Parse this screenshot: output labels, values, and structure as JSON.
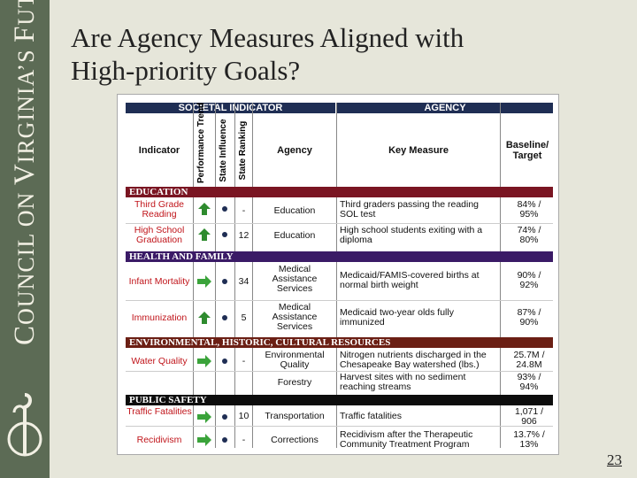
{
  "title_line1": "Are Agency Measures Aligned with",
  "title_line2": "High-priority Goals?",
  "brand": {
    "c1": "C",
    "w1": "OUNCIL ON ",
    "c2": "V",
    "w2": "IRGINIA’S ",
    "c3": "F",
    "w3": "UTURE"
  },
  "page_number": "23",
  "headers": {
    "societal": "SOCIETAL INDICATOR",
    "agency_group": "AGENCY",
    "indicator": "Indicator",
    "performance_trend": "Performance Trend",
    "state_influence": "State Influence",
    "state_ranking": "State Ranking",
    "agency": "Agency",
    "key_measure": "Key Measure",
    "baseline_target": "Baseline/ Target"
  },
  "sections": {
    "education": "EDUCATION",
    "health": "HEALTH AND FAMILY",
    "environment": "ENVIRONMENTAL, HISTORIC, CULTURAL RESOURCES",
    "safety": "PUBLIC SAFETY"
  },
  "colors": {
    "education": "#7a1522",
    "health": "#3a1a66",
    "environment": "#6b1f14",
    "safety": "#0d0d0d",
    "header": "#1f2e54",
    "up": "#2e8b2e",
    "right": "#3aa33a"
  },
  "rows": {
    "r1": {
      "indicator": "Third Grade Reading",
      "trend": "up",
      "ranking": "-",
      "agency": "Education",
      "measure": "Third graders passing the reading SOL test",
      "target": "84% / 95%"
    },
    "r2": {
      "indicator": "High School Graduation",
      "trend": "up",
      "ranking": "12",
      "agency": "Education",
      "measure": "High school students exiting with a diploma",
      "target": "74% / 80%"
    },
    "r3": {
      "indicator": "Infant Mortality",
      "trend": "right",
      "ranking": "34",
      "agency": "Medical Assistance Services",
      "measure": "Medicaid/FAMIS-covered births at normal birth weight",
      "target": "90% / 92%"
    },
    "r4": {
      "indicator": "Immunization",
      "trend": "up",
      "ranking": "5",
      "agency": "Medical Assistance Services",
      "measure": "Medicaid two-year olds fully immunized",
      "target": "87% / 90%"
    },
    "r5": {
      "indicator": "Water Quality",
      "trend": "right",
      "ranking": "-",
      "agency": "Environmental Quality",
      "measure": "Nitrogen nutrients discharged in the Chesapeake Bay watershed (lbs.)",
      "target": "25.7M / 24.8M"
    },
    "r6": {
      "indicator": "",
      "trend": "",
      "ranking": "",
      "agency": "Forestry",
      "measure": "Harvest sites with no sediment reaching streams",
      "target": "93% / 94%"
    },
    "r7": {
      "indicator": "Traffic Fatalities",
      "trend": "right",
      "ranking": "10",
      "agency": "Transportation",
      "measure": "Traffic fatalities",
      "target": "1,071 / 906"
    },
    "r8": {
      "indicator": "Recidivism",
      "trend": "right",
      "ranking": "-",
      "agency": "Corrections",
      "measure": "Recidivism after the Therapeutic Community Treatment Program",
      "target": "13.7% / 13%"
    }
  }
}
